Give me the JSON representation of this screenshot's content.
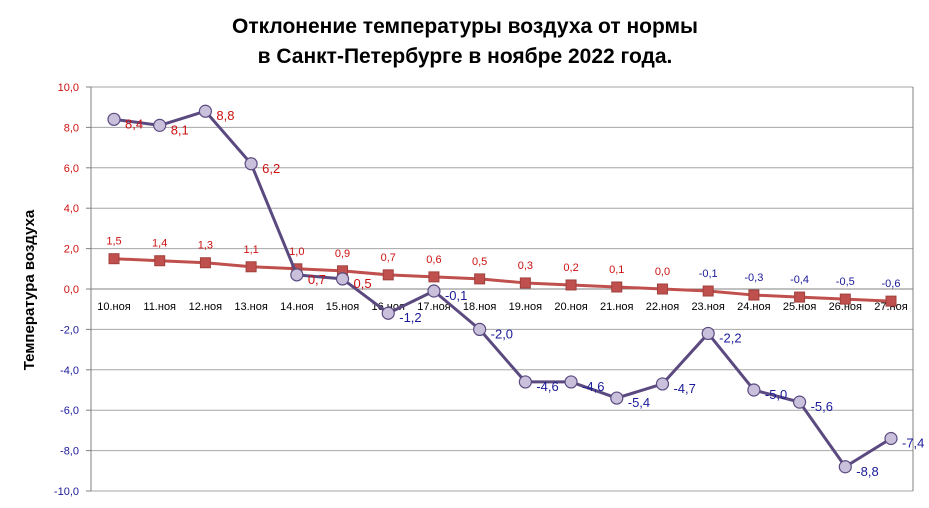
{
  "chart_data": {
    "type": "line",
    "title_line1": "Отклонение температуры воздуха от нормы",
    "title_line2": "в Санкт-Петербурге в ноябре 2022 года.",
    "ylabel": "Температура воздуха",
    "xlabel": "",
    "ylim": [
      -10,
      10
    ],
    "yticks": [
      10,
      8,
      6,
      4,
      2,
      0,
      -2,
      -4,
      -6,
      -8,
      -10
    ],
    "ytick_labels": [
      "10,0",
      "8,0",
      "6,0",
      "4,0",
      "2,0",
      "0,0",
      "-2,0",
      "-4,0",
      "-6,0",
      "-8,0",
      "-10,0"
    ],
    "grid": "horizontal",
    "legend": "none",
    "categories": [
      "10.ноя",
      "11.ноя",
      "12.ноя",
      "13.ноя",
      "14.ноя",
      "15.ноя",
      "16.ноя",
      "17.ноя",
      "18.ноя",
      "19.ноя",
      "20.ноя",
      "21.ноя",
      "22.ноя",
      "23.ноя",
      "24.ноя",
      "25.ноя",
      "26.ноя",
      "27.ноя"
    ],
    "series": [
      {
        "values": [
          8.4,
          8.1,
          8.8,
          6.2,
          0.7,
          0.5,
          -1.2,
          -0.1,
          -2.0,
          -4.6,
          -4.6,
          -5.4,
          -4.7,
          -2.2,
          -5.0,
          -5.6,
          -8.8,
          -7.4
        ],
        "labels": [
          "8,4",
          "8,1",
          "8,8",
          "6,2",
          "0,7",
          "0,5",
          "-1,2",
          "-0,1",
          "-2,0",
          "-4,6",
          "-4,6",
          "-5,4",
          "-4,7",
          "-2,2",
          "-5,0",
          "-5,6",
          "-8,8",
          "-7,4"
        ],
        "line_color": "#5b4a80",
        "marker": "circle",
        "marker_fill": "#c9c0dc",
        "marker_stroke": "#5b4a80"
      },
      {
        "values": [
          1.5,
          1.4,
          1.3,
          1.1,
          1.0,
          0.9,
          0.7,
          0.6,
          0.5,
          0.3,
          0.2,
          0.1,
          0.0,
          -0.1,
          -0.3,
          -0.4,
          -0.5,
          -0.6
        ],
        "labels": [
          "1,5",
          "1,4",
          "1,3",
          "1,1",
          "1,0",
          "0,9",
          "0,7",
          "0,6",
          "0,5",
          "0,3",
          "0,2",
          "0,1",
          "0,0",
          "-0,1",
          "-0,3",
          "-0,4",
          "-0,5",
          "-0,6"
        ],
        "line_color": "#c0504d",
        "marker": "square",
        "marker_fill": "#c0504d",
        "marker_stroke": "#a0403d"
      }
    ],
    "colors": {
      "positive_label": "#cc1111",
      "negative_label": "#1a1a99",
      "grid": "#a6a6a6",
      "axis": "#808080"
    }
  }
}
